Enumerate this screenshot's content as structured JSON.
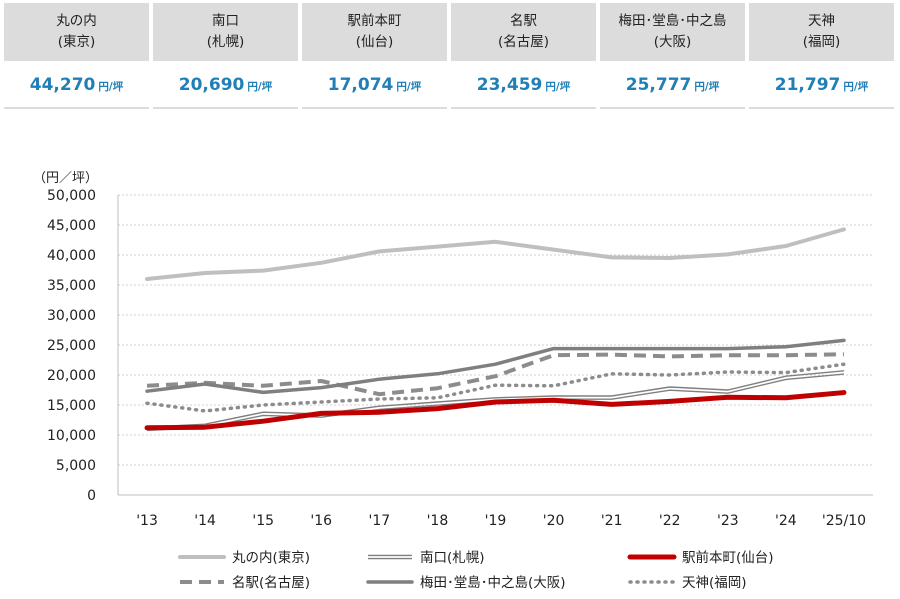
{
  "summary": {
    "unit": "円/坪",
    "cells": [
      {
        "name_line1": "丸の内",
        "name_line2": "(東京)",
        "value": "44,270"
      },
      {
        "name_line1": "南口",
        "name_line2": "(札幌)",
        "value": "20,690"
      },
      {
        "name_line1": "駅前本町",
        "name_line2": "(仙台)",
        "value": "17,074"
      },
      {
        "name_line1": "名駅",
        "name_line2": "(名古屋)",
        "value": "23,459"
      },
      {
        "name_line1": "梅田･堂島･中之島",
        "name_line2": "(大阪)",
        "value": "25,777"
      },
      {
        "name_line1": "天神",
        "name_line2": "(福岡)",
        "value": "21,797"
      }
    ]
  },
  "chart_data": {
    "type": "line",
    "ylabel": "（円／坪）",
    "ylim": [
      0,
      50000
    ],
    "yticks": [
      0,
      5000,
      10000,
      15000,
      20000,
      25000,
      30000,
      35000,
      40000,
      45000,
      50000
    ],
    "ytick_labels": [
      "0",
      "5,000",
      "10,000",
      "15,000",
      "20,000",
      "25,000",
      "30,000",
      "35,000",
      "40,000",
      "45,000",
      "50,000"
    ],
    "categories": [
      "'13",
      "'14",
      "'15",
      "'16",
      "'17",
      "'18",
      "'19",
      "'20",
      "'21",
      "'22",
      "'23",
      "'24",
      "'25/10"
    ],
    "grid": true,
    "legend_position": "bottom",
    "series": [
      {
        "name": "丸の内(東京)",
        "color": "#bfbfbf",
        "style": "solid-thick",
        "values": [
          36000,
          37000,
          37400,
          38700,
          40600,
          41400,
          42200,
          40900,
          39600,
          39500,
          40100,
          41500,
          44270
        ]
      },
      {
        "name": "南口(札幌)",
        "color": "#7f7f7f",
        "style": "double",
        "values": [
          11300,
          11800,
          13800,
          13500,
          14800,
          15500,
          16200,
          16500,
          16500,
          18000,
          17500,
          19800,
          20690
        ]
      },
      {
        "name": "駅前本町(仙台)",
        "color": "#c00000",
        "style": "solid-thick",
        "values": [
          11200,
          11300,
          12300,
          13600,
          13800,
          14400,
          15500,
          15800,
          15100,
          15600,
          16300,
          16200,
          17074
        ]
      },
      {
        "name": "名駅(名古屋)",
        "color": "#8c8c8c",
        "style": "dashed",
        "values": [
          18200,
          18700,
          18200,
          19000,
          16800,
          17800,
          19800,
          23300,
          23400,
          23100,
          23300,
          23300,
          23459
        ]
      },
      {
        "name": "梅田･堂島･中之島(大阪)",
        "color": "#7f7f7f",
        "style": "solid",
        "values": [
          17300,
          18500,
          17100,
          17900,
          19300,
          20200,
          21800,
          24400,
          24400,
          24400,
          24400,
          24700,
          25777
        ]
      },
      {
        "name": "天神(福岡)",
        "color": "#8c8c8c",
        "style": "dotted",
        "values": [
          15300,
          14000,
          15000,
          15500,
          16000,
          16200,
          18300,
          18200,
          20200,
          20000,
          20500,
          20400,
          21797
        ]
      }
    ]
  }
}
